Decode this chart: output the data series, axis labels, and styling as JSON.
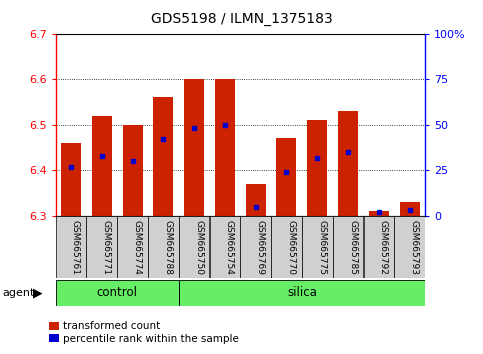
{
  "title": "GDS5198 / ILMN_1375183",
  "samples": [
    "GSM665761",
    "GSM665771",
    "GSM665774",
    "GSM665788",
    "GSM665750",
    "GSM665754",
    "GSM665769",
    "GSM665770",
    "GSM665775",
    "GSM665785",
    "GSM665792",
    "GSM665793"
  ],
  "groups": [
    "control",
    "control",
    "control",
    "control",
    "silica",
    "silica",
    "silica",
    "silica",
    "silica",
    "silica",
    "silica",
    "silica"
  ],
  "red_values": [
    6.46,
    6.52,
    6.5,
    6.56,
    6.6,
    6.6,
    6.37,
    6.47,
    6.51,
    6.53,
    6.31,
    6.33
  ],
  "blue_percentiles": [
    27,
    33,
    30,
    42,
    48,
    50,
    5,
    24,
    32,
    35,
    2,
    3
  ],
  "y_min": 6.3,
  "y_max": 6.7,
  "y_left_ticks": [
    6.3,
    6.4,
    6.5,
    6.6,
    6.7
  ],
  "y_right_ticks": [
    0,
    25,
    50,
    75,
    100
  ],
  "bar_color": "#CC2200",
  "blue_color": "#0000CC",
  "tick_label_bg": "#D0D0D0",
  "green_color": "#66EE66",
  "legend_red": "transformed count",
  "legend_blue": "percentile rank within the sample"
}
